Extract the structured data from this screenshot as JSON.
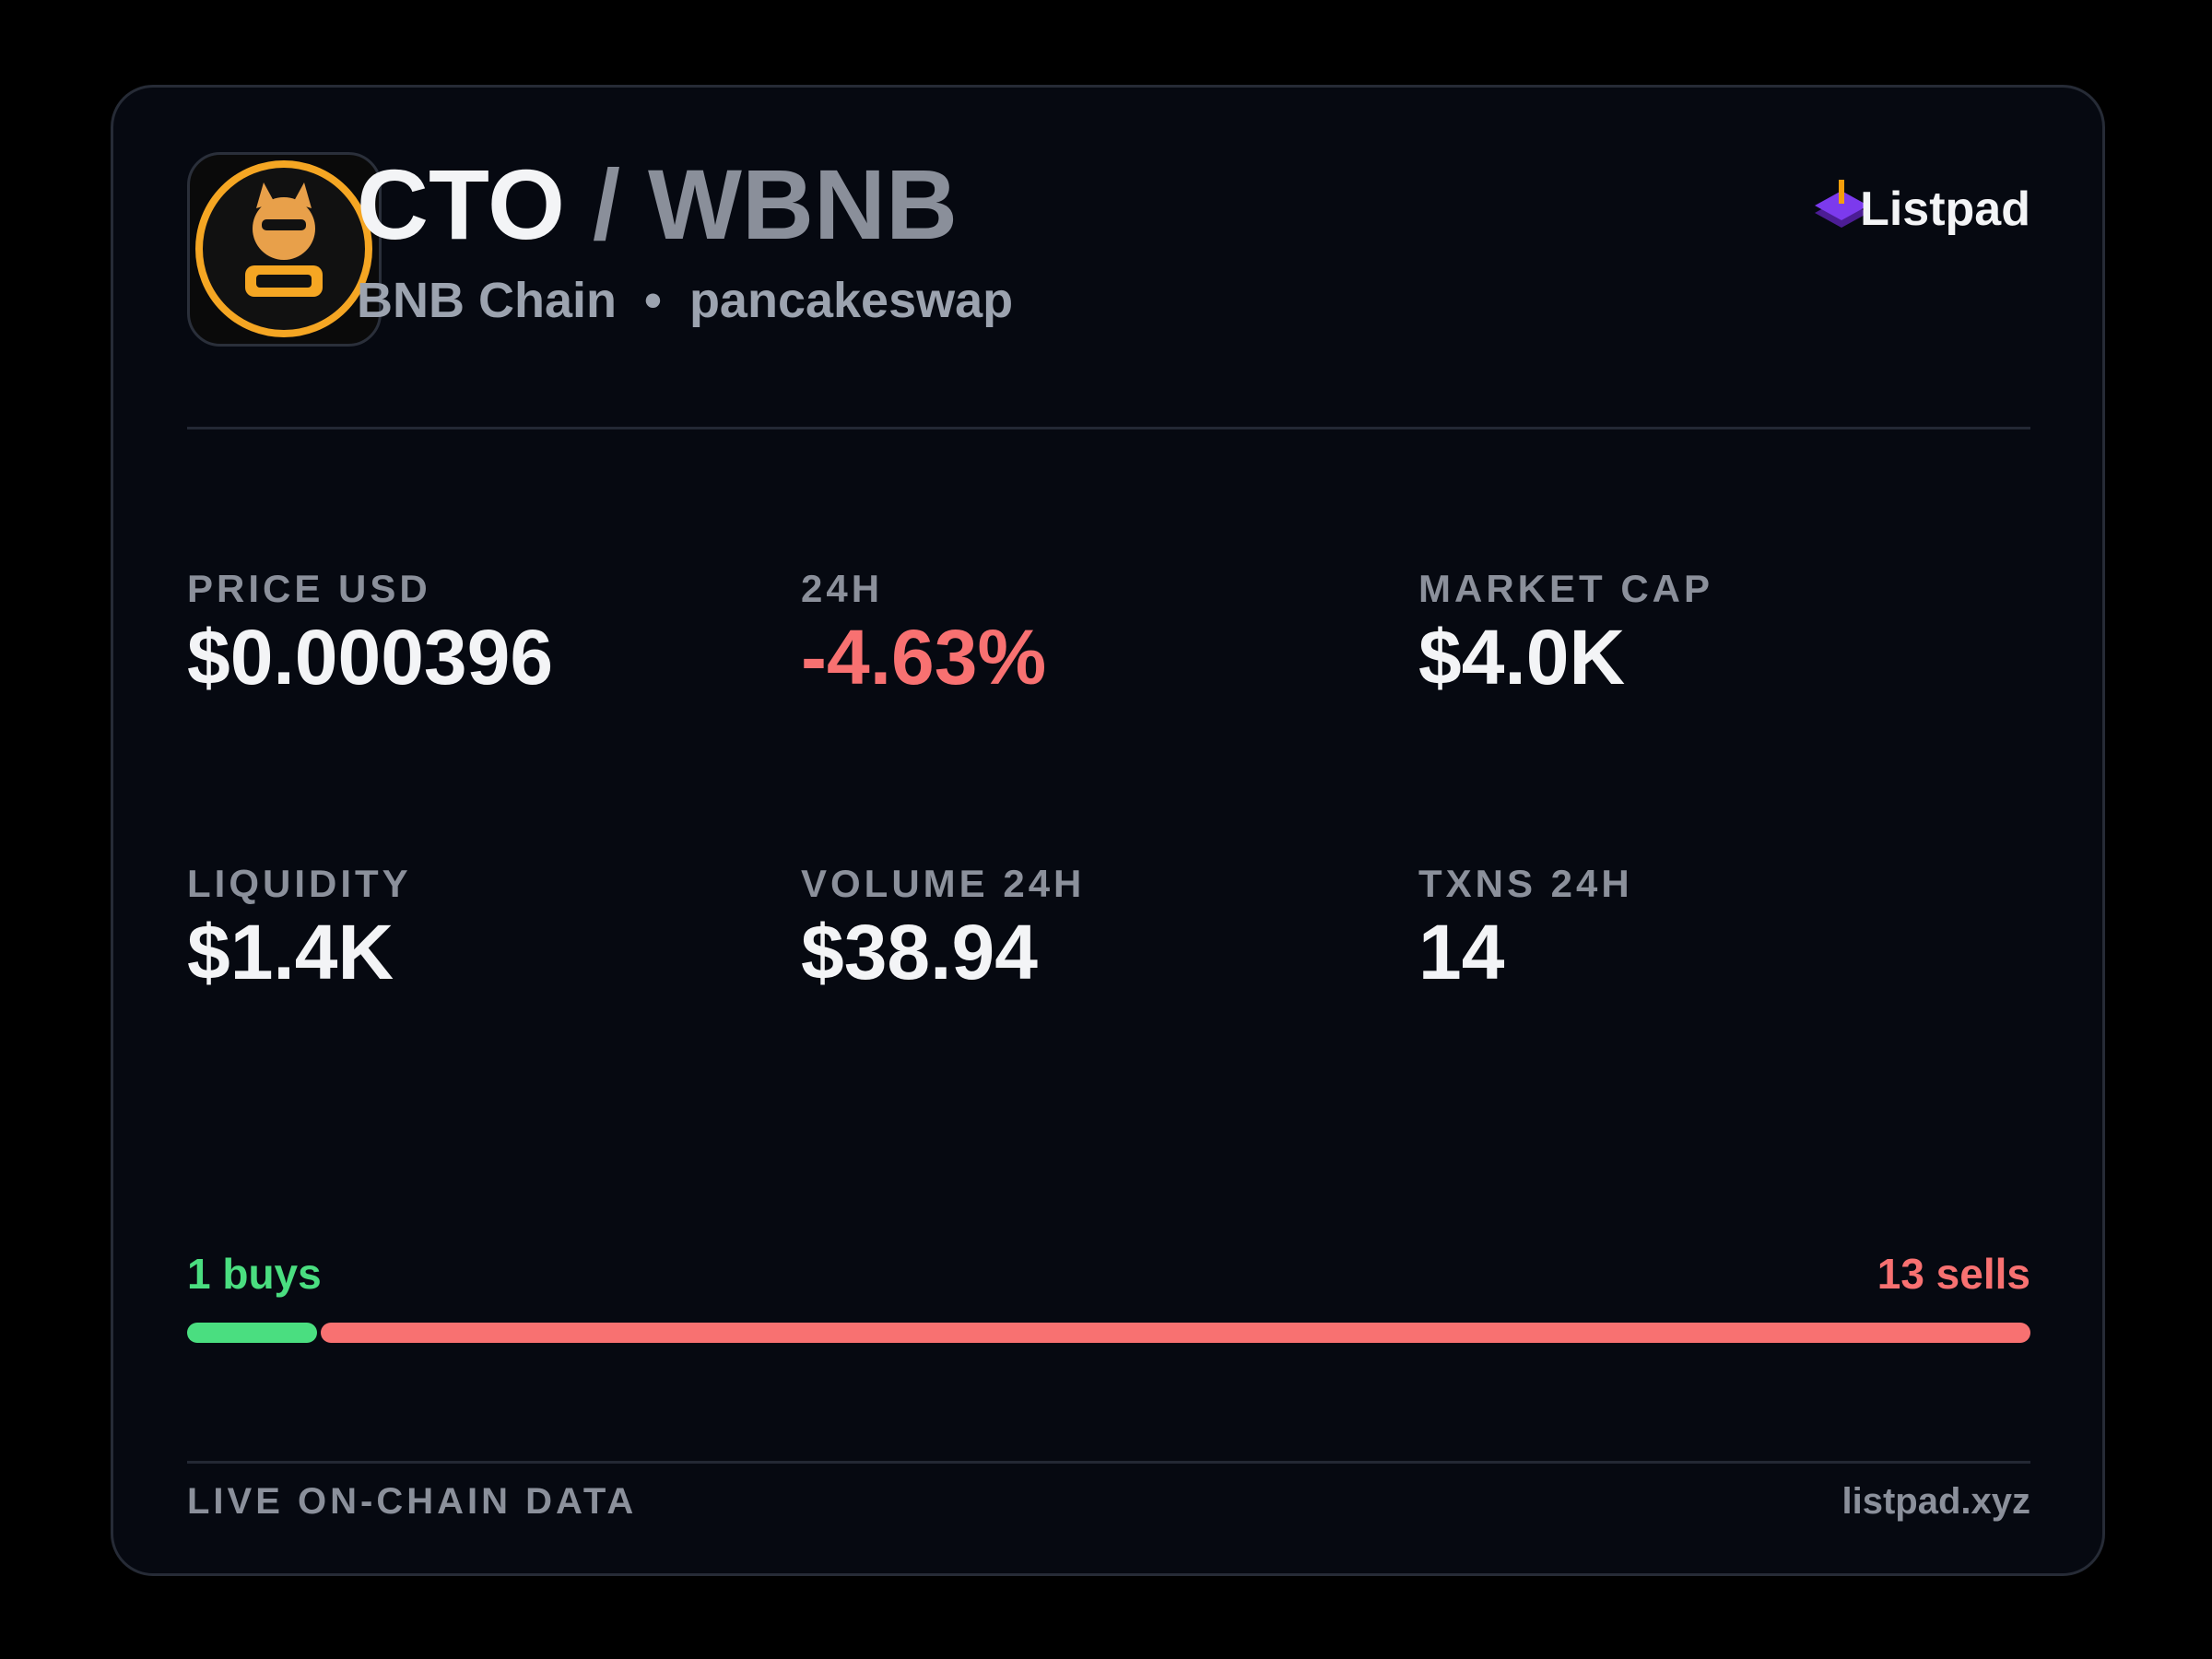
{
  "header": {
    "base": "CTO",
    "quote": "/ WBNB",
    "chain": "BNB Chain",
    "separator": "•",
    "dex": "pancakeswap",
    "brand": "Listpad"
  },
  "stats": [
    {
      "label": "PRICE USD",
      "value": "$0.000396"
    },
    {
      "label": "24H",
      "value": "-4.63%"
    },
    {
      "label": "MARKET CAP",
      "value": "$4.0K"
    },
    {
      "label": "LIQUIDITY",
      "value": "$1.4K"
    },
    {
      "label": "VOLUME 24H",
      "value": "$38.94"
    },
    {
      "label": "TXNS 24H",
      "value": "14"
    }
  ],
  "trades": {
    "buys": {
      "value": 1,
      "label": "1 buys",
      "color": "#4ade80"
    },
    "sells": {
      "value": 13,
      "label": "13 sells",
      "color": "#f87171"
    }
  },
  "footer": {
    "left": "LIVE ON-CHAIN DATA",
    "right": "listpad.xyz"
  }
}
